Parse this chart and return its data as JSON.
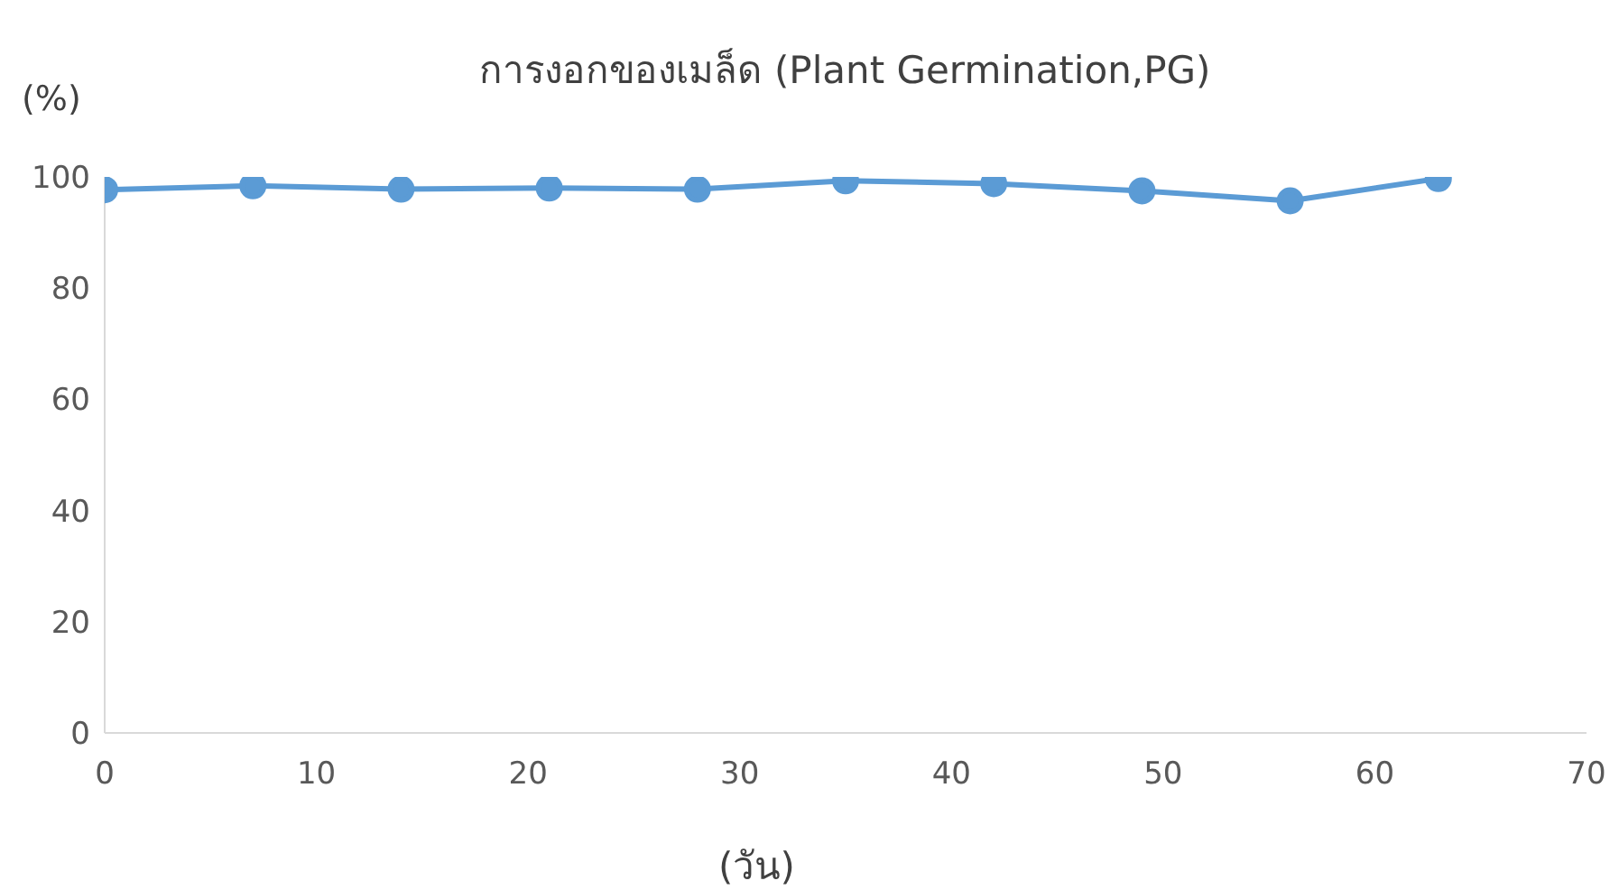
{
  "chart_data": {
    "type": "line",
    "title": "การงอกของเมล็ด (Plant Germination,PG)",
    "xlabel": "(วัน)",
    "ylabel": "(%)",
    "x": [
      0,
      7,
      14,
      21,
      28,
      35,
      42,
      49,
      56,
      63
    ],
    "series": [
      {
        "color": "#5b9bd5",
        "values": [
          97.7,
          98.4,
          97.8,
          98.0,
          97.8,
          99.3,
          98.8,
          97.5,
          95.7,
          99.7
        ]
      }
    ],
    "xlim": [
      0,
      70
    ],
    "xticks": [
      0,
      10,
      20,
      30,
      40,
      50,
      60,
      70
    ],
    "ylim": [
      0,
      100
    ],
    "yticks": [
      0,
      20,
      40,
      60,
      80,
      100
    ],
    "grid": false,
    "legend": false,
    "marker": "circle",
    "line_style": "solid"
  }
}
